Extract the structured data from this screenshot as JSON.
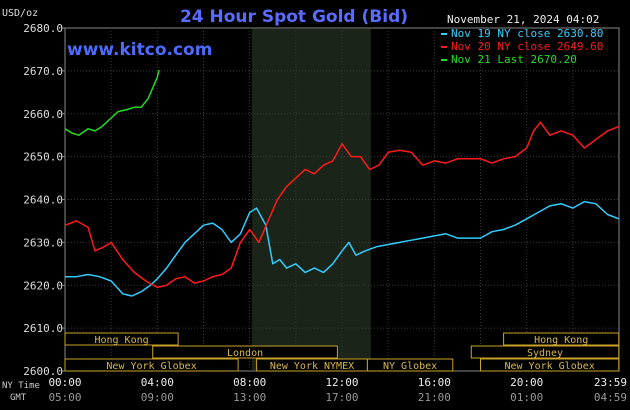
{
  "chart_data": {
    "type": "line",
    "title": "24 Hour Spot Gold (Bid)",
    "watermark": "www.kitco.com",
    "unit_label": "USD/oz",
    "timestamp": "November 21, 2024 04:02",
    "ylim": [
      2600,
      2680
    ],
    "y_ticks": [
      "2680.0",
      "2670.0",
      "2660.0",
      "2650.0",
      "2640.0",
      "2630.0",
      "2620.0",
      "2610.0",
      "2600.0"
    ],
    "x_row_labels": {
      "ny": "NY Time",
      "gmt": "GMT"
    },
    "x_ticks_ny": [
      "00:00",
      "04:00",
      "08:00",
      "12:00",
      "16:00",
      "20:00",
      "23:59"
    ],
    "x_ticks_gmt": [
      "05:00",
      "09:00",
      "13:00",
      "17:00",
      "21:00",
      "01:00",
      "04:59"
    ],
    "grid": true,
    "legend_position": "top-right",
    "highlight_hours": [
      8.1,
      13.25
    ],
    "sessions": [
      {
        "label": "Hong Kong",
        "start": 0,
        "end": 4.9
      },
      {
        "label": "London",
        "start": 3.8,
        "end": 11.8
      },
      {
        "label": "New York Globex",
        "start": 0,
        "end": 7.5
      },
      {
        "label": "New York NYMEX",
        "start": 8.3,
        "end": 13.1
      },
      {
        "label": "NY Globex",
        "start": 13.1,
        "end": 16.8
      },
      {
        "label": "Hong Kong",
        "start": 19.0,
        "end": 23.99
      },
      {
        "label": "Sydney",
        "start": 17.6,
        "end": 23.99
      },
      {
        "label": "New York Globex",
        "start": 18.0,
        "end": 23.99
      }
    ],
    "series": [
      {
        "name": "Nov 19 NY close 2630.80",
        "color": "#33ccff",
        "x": [
          0,
          0.5,
          1.0,
          1.5,
          2.0,
          2.5,
          2.9,
          3.3,
          3.7,
          4.0,
          4.4,
          4.8,
          5.2,
          5.6,
          6.0,
          6.4,
          6.8,
          7.2,
          7.6,
          8.0,
          8.3,
          8.7,
          9.0,
          9.3,
          9.6,
          10.0,
          10.4,
          10.8,
          11.2,
          11.6,
          12.0,
          12.3,
          12.6,
          13.0,
          13.5,
          14.0,
          14.5,
          15.0,
          15.5,
          16.0,
          16.5,
          17.0,
          17.5,
          18.0,
          18.5,
          19.0,
          19.5,
          20.0,
          20.5,
          21.0,
          21.5,
          22.0,
          22.5,
          23.0,
          23.5,
          23.99
        ],
        "values": [
          2622,
          2622,
          2622.5,
          2622,
          2621,
          2618,
          2617.5,
          2618.5,
          2620,
          2621.5,
          2624,
          2627,
          2630,
          2632,
          2634,
          2634.5,
          2633,
          2630,
          2632,
          2637,
          2638,
          2634,
          2625,
          2626,
          2624,
          2625,
          2623,
          2624,
          2623,
          2625,
          2628,
          2630,
          2627,
          2628,
          2629,
          2629.5,
          2630,
          2630.5,
          2631,
          2631.5,
          2632,
          2631,
          2631,
          2631,
          2632.5,
          2633,
          2634,
          2635.5,
          2637,
          2638.5,
          2639,
          2638,
          2639.5,
          2639,
          2636.5,
          2635.5
        ]
      },
      {
        "name": "Nov 20 NY close 2649.60",
        "color": "#ff1a1a",
        "x": [
          0,
          0.5,
          1.0,
          1.3,
          1.7,
          2.0,
          2.5,
          3.0,
          3.5,
          4.0,
          4.4,
          4.8,
          5.2,
          5.6,
          6.0,
          6.4,
          6.8,
          7.2,
          7.6,
          8.0,
          8.4,
          8.8,
          9.2,
          9.6,
          10.0,
          10.4,
          10.8,
          11.2,
          11.6,
          12.0,
          12.4,
          12.8,
          13.2,
          13.6,
          14.0,
          14.5,
          15.0,
          15.5,
          16.0,
          16.5,
          17.0,
          17.5,
          18.0,
          18.5,
          19.0,
          19.5,
          20.0,
          20.3,
          20.6,
          21.0,
          21.5,
          22.0,
          22.5,
          23.0,
          23.5,
          23.99
        ],
        "values": [
          2634,
          2635,
          2633.5,
          2628,
          2629,
          2630,
          2626,
          2623,
          2621,
          2619.5,
          2620,
          2621.5,
          2622,
          2620.5,
          2621,
          2622,
          2622.5,
          2624,
          2630,
          2633,
          2630,
          2635,
          2640,
          2643,
          2645,
          2647,
          2646,
          2648,
          2649,
          2653,
          2650,
          2650,
          2647,
          2648,
          2651,
          2651.5,
          2651,
          2648,
          2649,
          2648.5,
          2649.5,
          2649.5,
          2649.5,
          2648.5,
          2649.5,
          2650,
          2652,
          2656,
          2658,
          2655,
          2656,
          2655,
          2652,
          2654,
          2656,
          2657
        ]
      },
      {
        "name": "Nov 21 Last 2670.20",
        "color": "#22dd22",
        "x": [
          0,
          0.3,
          0.6,
          1.0,
          1.3,
          1.6,
          2.0,
          2.3,
          2.7,
          3.0,
          3.3,
          3.6,
          3.8,
          4.0,
          4.07
        ],
        "values": [
          2656.5,
          2655.5,
          2655,
          2656.5,
          2656,
          2657,
          2659,
          2660.5,
          2661,
          2661.5,
          2661.5,
          2663.5,
          2666,
          2668.5,
          2670.2
        ]
      }
    ]
  }
}
